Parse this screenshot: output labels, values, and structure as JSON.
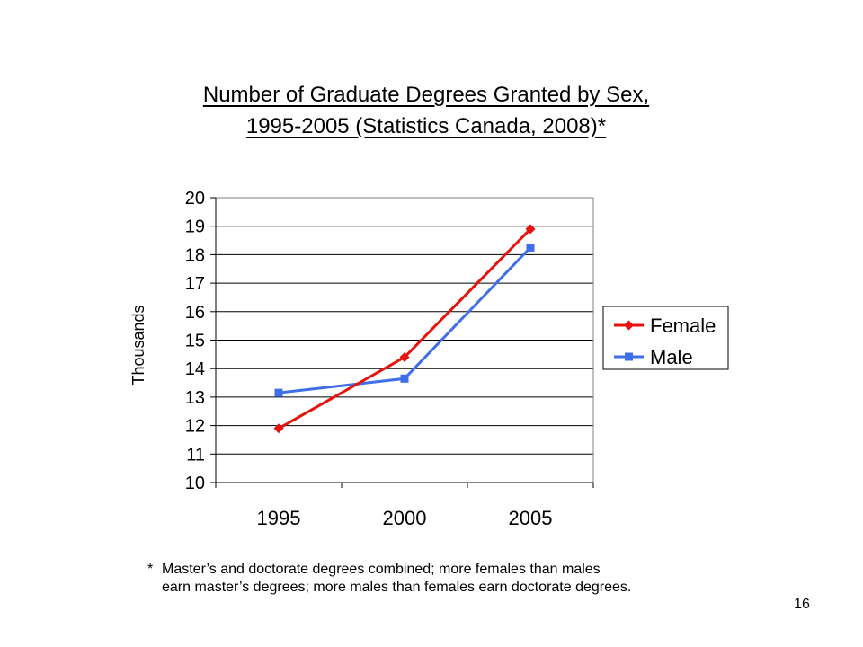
{
  "slide": {
    "title_line1": "Number of Graduate Degrees Granted by Sex,",
    "title_line2": "1995-2005 (Statistics Canada, 2008)*",
    "footnote_marker": "*",
    "footnote_line1": "Master’s and doctorate degrees combined; more females than males",
    "footnote_line2": "earn master’s degrees; more males than females earn doctorate degrees.",
    "page_number": "16"
  },
  "chart_data": {
    "type": "line",
    "title": "Number of Graduate Degrees Granted by Sex, 1995-2005 (Statistics Canada, 2008)*",
    "xlabel": "",
    "ylabel": "Thousands",
    "categories": [
      "1995",
      "2000",
      "2005"
    ],
    "ylim": [
      10,
      20
    ],
    "yticks": [
      10,
      11,
      12,
      13,
      14,
      15,
      16,
      17,
      18,
      19,
      20
    ],
    "grid": true,
    "legend_position": "right",
    "series": [
      {
        "name": "Female",
        "values": [
          11.9,
          14.4,
          18.9
        ],
        "color": "#e8120c",
        "marker": "diamond"
      },
      {
        "name": "Male",
        "values": [
          13.15,
          13.65,
          18.25
        ],
        "color": "#3f6fe8",
        "marker": "square"
      }
    ]
  }
}
